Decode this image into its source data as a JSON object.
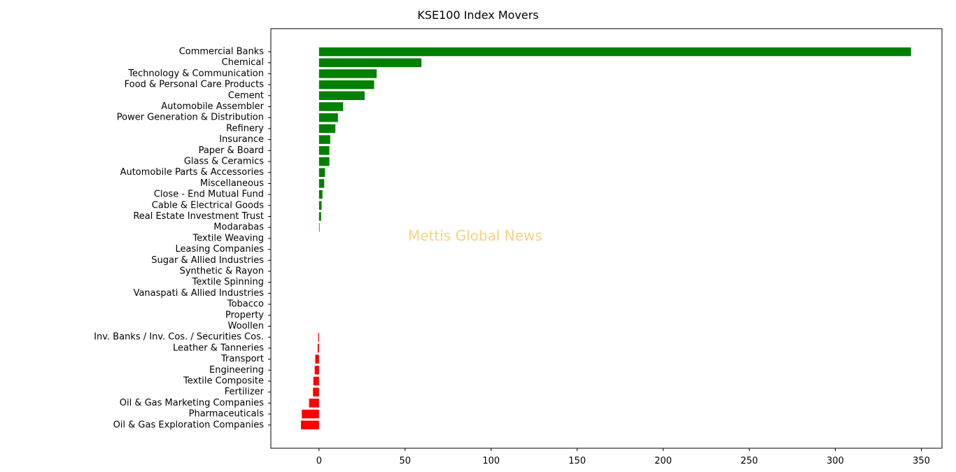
{
  "chart_data": {
    "type": "bar",
    "orientation": "horizontal",
    "title": "KSE100 Index Movers",
    "xlabel": "",
    "ylabel": "",
    "xlim": [
      -28,
      362
    ],
    "xticks": [
      0,
      50,
      100,
      150,
      200,
      250,
      300,
      350
    ],
    "grid": false,
    "legend": "none",
    "positive_color": "#008000",
    "negative_color": "#ff0000",
    "categories": [
      "Commercial Banks",
      "Chemical",
      "Technology & Communication",
      "Food & Personal Care Products",
      "Cement",
      "Automobile Assembler",
      "Power Generation & Distribution",
      "Refinery",
      "Insurance",
      "Paper & Board",
      "Glass & Ceramics",
      "Automobile Parts & Accessories",
      "Miscellaneous",
      "Close - End Mutual Fund",
      "Cable & Electrical Goods",
      "Real Estate Investment Trust",
      "Modarabas",
      "Textile Weaving",
      "Leasing Companies",
      "Sugar & Allied Industries",
      "Synthetic & Rayon",
      "Textile Spinning",
      "Vanaspati & Allied Industries",
      "Tobacco",
      "Property",
      "Woollen",
      "Inv. Banks / Inv. Cos. / Securities Cos.",
      "Leather & Tanneries",
      "Transport",
      "Engineering",
      "Textile Composite",
      "Fertilizer",
      "Oil & Gas Marketing Companies",
      "Pharmaceuticals",
      "Oil & Gas Exploration Companies"
    ],
    "values": [
      344,
      59.5,
      33.5,
      32,
      26.5,
      14,
      11,
      9.5,
      6.5,
      6,
      6,
      3.5,
      3,
      2,
      1.5,
      1.2,
      0.3,
      0,
      0,
      0,
      0,
      0,
      0,
      0,
      0,
      0,
      -0.5,
      -0.8,
      -2.2,
      -2.5,
      -3.3,
      -3.5,
      -5.8,
      -10,
      -10.5
    ]
  },
  "watermark": "Mettis Global News"
}
